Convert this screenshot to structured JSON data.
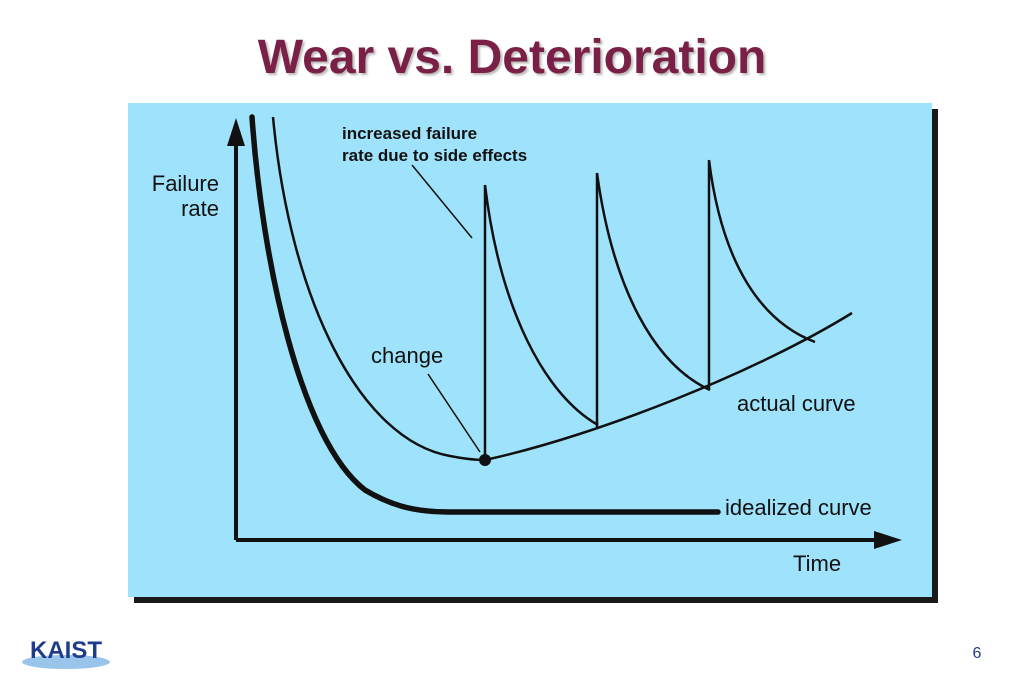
{
  "slide": {
    "title": "Wear vs. Deterioration",
    "page_number": "6"
  },
  "diagram": {
    "y_axis_label": [
      "Failure",
      "rate"
    ],
    "x_axis_label": "Time",
    "annotation_side_effects": [
      "increased failure",
      "rate due to side effects"
    ],
    "annotation_change": "change",
    "label_actual_curve": "actual curve",
    "label_idealized_curve": "idealized curve"
  },
  "logo": {
    "text": "KAIST"
  },
  "colors": {
    "title": "#7a1f45",
    "panel_background": "#9ee3fb",
    "panel_shadow": "#1a1a1a",
    "ink": "#111111",
    "logo_blue": "#1f3c8a"
  }
}
